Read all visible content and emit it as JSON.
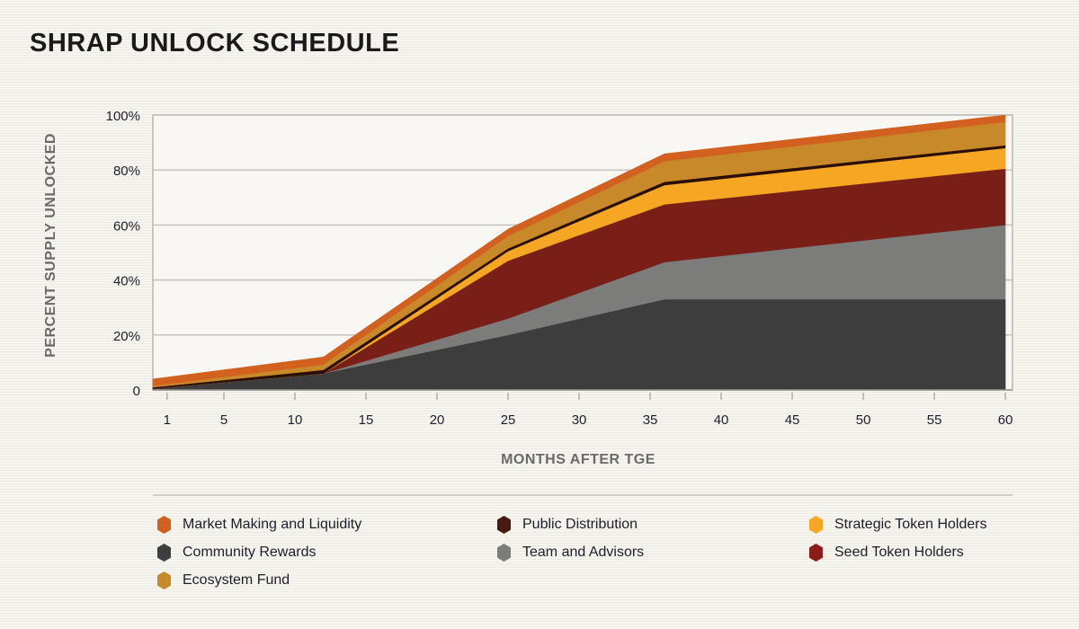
{
  "title": "SHRAP UNLOCK SCHEDULE",
  "chart_data": {
    "type": "area",
    "stacked": true,
    "title": "SHRAP UNLOCK SCHEDULE",
    "xlabel": "MONTHS AFTER TGE",
    "ylabel": "PERCENT SUPPLY UNLOCKED",
    "x": [
      0,
      12,
      25,
      36,
      60
    ],
    "xlim": [
      0,
      60.5
    ],
    "ylim": [
      0,
      100
    ],
    "xticks": [
      1,
      5,
      10,
      15,
      20,
      25,
      30,
      35,
      40,
      45,
      50,
      55,
      60
    ],
    "yticks": [
      0,
      20,
      40,
      60,
      80,
      100
    ],
    "ytick_labels": [
      "0",
      "20%",
      "40%",
      "60%",
      "80%",
      "100%"
    ],
    "grid": "horizontal",
    "legend_position": "bottom",
    "series": [
      {
        "name": "Community Rewards",
        "color": "#3d3d3d",
        "values": [
          0.5,
          6,
          20,
          33,
          33
        ]
      },
      {
        "name": "Team and Advisors",
        "color": "#7c7c7a",
        "values": [
          0,
          0,
          6,
          13.5,
          27
        ]
      },
      {
        "name": "Seed Token Holders",
        "color": "#7a1f17",
        "values": [
          0,
          0,
          21,
          21,
          20.5
        ]
      },
      {
        "name": "Strategic Token Holders",
        "color": "#f5a623",
        "values": [
          0,
          0,
          3.5,
          7,
          7.5
        ]
      },
      {
        "name": "Public Distribution",
        "color": "#2a0e08",
        "values": [
          0.5,
          1.3,
          1,
          1.2,
          1
        ]
      },
      {
        "name": "Ecosystem Fund",
        "color": "#c8892a",
        "values": [
          0.5,
          2,
          4.5,
          7.5,
          8.5
        ]
      },
      {
        "name": "Market Making and Liquidity",
        "color": "#d2601e",
        "values": [
          2.5,
          2.7,
          2.5,
          2.7,
          2.5
        ]
      }
    ]
  },
  "legend": [
    {
      "label": "Market Making and Liquidity",
      "color": "#d2601e"
    },
    {
      "label": "Public Distribution",
      "color": "#4a1a10"
    },
    {
      "label": "Strategic Token Holders",
      "color": "#f7a823"
    },
    {
      "label": "Community Rewards",
      "color": "#3d3f3f"
    },
    {
      "label": "Team and Advisors",
      "color": "#7c7c7a"
    },
    {
      "label": "Seed Token Holders",
      "color": "#8b1c17"
    },
    {
      "label": "Ecosystem Fund",
      "color": "#c8892a"
    }
  ]
}
